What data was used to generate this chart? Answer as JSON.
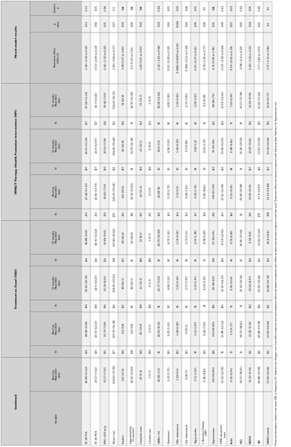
{
  "col_headers_row1": [
    "Variable",
    "Combined",
    "Treatment as Usual (TAU)",
    "",
    "",
    "",
    "",
    "IMPACT Therapy (Health Promotion Intervention (HPI)",
    "",
    "",
    "",
    "",
    "",
    "Mixed model results",
    "",
    ""
  ],
  "col_headers_row2": [
    "",
    "Baseline\nMean(SD)/\nN(%)",
    "N",
    "Baseline\nMean(SD)/\nN(%)",
    "N",
    "12 months\nMean(SD)/\nN(%)",
    "N",
    "15 months\nMean(SD)/\nN(%)",
    "N",
    "Baseline\nMean(SD)/\nN(%)",
    "N",
    "12 months\nMean(SD)/\nN(%)",
    "N",
    "15 months\nMean(SD)/\nN(%)",
    "Treatment effect\n(95% CI)",
    "p\nvalue",
    "Cohen's\nd"
  ],
  "rows": [
    [
      "SF-36 PCS",
      "46.83 (11.52)",
      "193",
      "48.08 (9.58)",
      "139",
      "49.01 (10.33)",
      "114",
      "48.88 (9.62)",
      "213",
      "47.44 (11.32)",
      "127",
      "46.51 (11.24)",
      "117",
      "47.54 (11.14)",
      "-1.40 (-3.20 to 0.41)",
      "0.13",
      "-0.13"
    ],
    [
      "SF-36 MCS",
      "43.17 (7.52)",
      "193",
      "43.72 (12.22)",
      "139",
      "44.5 (13.47)",
      "114",
      "44.91 (13.42)",
      "213",
      "42.81 (13.73)",
      "127",
      "43.9 (12.97)",
      "117",
      "42.3 (13.42)",
      "-0.13 (-2.49 to 2.24)",
      "0.92",
      "0.01"
    ],
    [
      "BMI <100 only",
      "31.17 (7.52)",
      "175",
      "31.79 (7.49)",
      "134",
      "32.29 (8.01)",
      "102",
      "33.69 (9.61)",
      "203",
      "30.63 (7.52)",
      "120",
      "30.51 (7.38)",
      "102",
      "30.04 (7.67)",
      "-0.45 (-1.32 to 0.42)",
      "0.31",
      "-0.06"
    ],
    [
      "Waist (cm)",
      "104.63 (17.95)",
      "177",
      "107.39 (16.38)",
      "134",
      "109.25 (16.52)",
      "108",
      "110.96 (16.62)",
      "200",
      "106.29 (19.24)",
      "121",
      "106.05 (16.44)",
      "111",
      "104.22 (16.21)",
      "-1.83 (-3.82 to 0.17)",
      "0.07",
      "-0.1"
    ],
    [
      "Smoker",
      "112 (27.6)",
      "194",
      "112 (58)",
      "132",
      "80 (62.1)",
      "113",
      "64 (56.6)",
      "212",
      "141 (66.5)",
      "127",
      "81 (63.8)",
      "116",
      "74 (63.8)",
      "1.08 (0.37 to 3.09)",
      "0.93",
      "N/A"
    ],
    [
      "Cigarettes/day\n(if smoker)",
      "18.32 (12.83)",
      "108",
      "112 (58)",
      "80",
      "80 (62.1)",
      "61",
      "64 (56.6)",
      "136",
      "18.32 (12.83)",
      "81",
      "19.79 (15.49)",
      "71",
      "18.97 (15.99)",
      "0.1 (0.33 to 0.53)",
      "0.66",
      "N/A"
    ],
    [
      "Cannabis user",
      "24 (5.9)",
      "194",
      "26 (13.5)",
      "138",
      "21 (13.3)",
      "148",
      "12 (8.1)",
      "212",
      "24 (11.3)",
      "160",
      "21 (13.1)",
      "153",
      "21 (13.7)",
      "1.40 (0.51 to 3.93)",
      "0.50",
      "N/A"
    ],
    [
      "Cocaine use",
      "7 (1.7)",
      "194",
      "3 (1.5)",
      "138",
      "2 (1.3)",
      "148",
      "1 (0.7)",
      "212",
      "4 (1.9)",
      "160",
      "0 (0.0)",
      "153",
      "1 (0.9)",
      "",
      "",
      ""
    ],
    [
      "HBA1c (%)",
      "40.06 (1.0)",
      "91",
      "40.93 (8.34)",
      "91",
      "41.77 (9.06)",
      "86",
      "40.79 (10.69)",
      "155",
      "40.08 (8)",
      "80",
      "38.6 (9.2)",
      "80",
      "38.28 (10.46)",
      "-0.32 (-1.49 to 0.86)",
      "0.59",
      "-0.04"
    ],
    [
      "Cholesterol",
      "5.23 (1.72)",
      "133",
      "5.09 (1.10)",
      "80",
      "4.86 (1.12)",
      "80",
      "4.70 (1.32)",
      "153",
      "5.23 (1.72)",
      "80",
      "4.96 (1.02)",
      "85",
      "4.81 (1.00)",
      "0.01 (-0.28 to 0.30)",
      "0.93",
      "0.01"
    ],
    [
      "HDL cholesterol",
      "1.29 (0.5)",
      "133",
      "1.28 (0.49)",
      "80",
      "1.25 (0.34)",
      "80",
      "1.19 (0.34)",
      "153",
      "1.23 (0.5)",
      "80",
      "1.30 (0.30)",
      "85",
      "1.30 (0.35)",
      "0.0085 (0.0007 to 0.16)",
      "0.034",
      "0.20"
    ],
    [
      "LDL cholesterol",
      "3.08 (1)",
      "133",
      "3.09 (1)",
      "80",
      "2.77 (1.07)",
      "80",
      "2.73 (1.11)",
      "153",
      "3.08 (1.01)",
      "80",
      "2.9 (0.96)",
      "85",
      "2.75 (0.95)",
      "0.006 (-0.11 to 0.24)",
      "0.49",
      "0.06"
    ],
    [
      "Triglycerides",
      "2.12 (1.67)",
      "97",
      "2.12 (1.67)",
      "91",
      "2.23 (1.97)",
      "86",
      "2.03 (1.38)",
      "157",
      "2.04 (1.74)",
      "82",
      "1.82 (1.4)",
      "80",
      "2.09 (2.47)",
      "0.01 (-0.37 to 0.41)",
      "0.95",
      "0.01"
    ],
    [
      "C-Reactive Protein\n(CRP)",
      "5.85 (8.81)",
      "114",
      "5.46 (7.03)",
      "24",
      "6.59 (6.35)",
      "17",
      "4.98 (5.49)",
      "114",
      "5.85 (8.81)",
      "20",
      "4.55 (3.79)",
      "11",
      "4.2 (4.78)",
      "0.76 (-1.25 to 2.77)",
      "0.46",
      "0.1"
    ],
    [
      "Hypertension",
      "110 (61.8%)",
      "126",
      "110 (61.8%)",
      "125",
      "82 (65.6%)",
      "106",
      "67 (63.2%)",
      "202",
      "136 (67.3%)",
      "120",
      "76 (63.3%)",
      "112",
      "68 (60.7%)",
      "0.71 (0.38 to 1.36)",
      "0.31",
      "N/A"
    ],
    [
      "DINE saturated\nscore",
      "31.52 (12.95)",
      "92",
      "31.88 (12.54)",
      "126",
      "32.47 (14.33)",
      "110",
      "31.19 (12.61)",
      "207",
      "31.52 (12.95)",
      "122",
      "31.83 (13.25)",
      "110",
      "31.19 (12.61)",
      "-0.19 (-2.82 to 2.44)",
      "0.89",
      "-0.01"
    ],
    [
      "Audit",
      "0.15 (0.35)",
      "70",
      "5.4 (5.77)",
      "70",
      "5.05 (5.54)",
      "68",
      "4.76 (4.83)",
      "143",
      "0.15 (0.35)",
      "84",
      "0.98 (0.46)",
      "77",
      "7.43 (6.09)",
      "0.19 (-0.02 to 0.39)",
      "0.07",
      "0.19"
    ],
    [
      "IPAQ",
      "34.72 (38.41)",
      "36",
      "34.72 (38.41)",
      "36",
      "25.43 (33.34)",
      "26",
      "26.95 (27.64)",
      "52",
      "29.49 (33.89)",
      "32",
      "15.40 (19.03)",
      "23",
      "20.11 (27.38)",
      "-0.08 (-0.4 to 0.25)",
      "0.65",
      "-0.02"
    ],
    [
      "MADRS",
      "10.93 (9.33)",
      "131",
      "11.05 (9.33)",
      "130",
      "10.23 (8.97)",
      "114",
      "9.92 (8.8)",
      "210",
      "10.93 (9.59)",
      "127",
      "10.87 (9.56)",
      "115",
      "12.03 (9.99)",
      "0.49 (-1.24 to 2.22)",
      "0.58",
      "0.05"
    ],
    [
      "GAF",
      "60.88 (13.38)",
      "131",
      "60.88 (13.38)",
      "130",
      "55.56 (12.64)",
      "114",
      "52.63 (11.42)",
      "209",
      "57.9 (12.87)",
      "126",
      "53.01 (11.09)",
      "115",
      "52.63 (11.42)",
      "-0.7 (-3.44 to 2.03)",
      "0.62",
      "-0.05"
    ],
    [
      "PANSS (total)",
      "51.63 (14.46)",
      "131",
      "51.63 (14.46)",
      "131",
      "50.08 (12.74)",
      "114",
      "49.4 (14.8)",
      "208",
      "51.14 (13.86)",
      "127",
      "51.24 (13.44)",
      "115",
      "50.8 (13.77)",
      "1.37 (-1.23 to 3.96)",
      "0.3",
      "0.1"
    ]
  ],
  "footnote": "Presented descriptive statistics are mean (SD) or frequency (%). Statistics for changes over time within treatment arm and treatment effects are based on patients with follow-up data collected with a logistic model was used. Treatment effects are based on patients with follow-up data. Statistics for Hypertension, sm...",
  "bg_color": "#ffffff",
  "header_bg": "#d3d3d3",
  "alt_row_bg": "#f0f0f0",
  "border_color": "#888888",
  "text_color": "#000000",
  "font_size": 3.2
}
